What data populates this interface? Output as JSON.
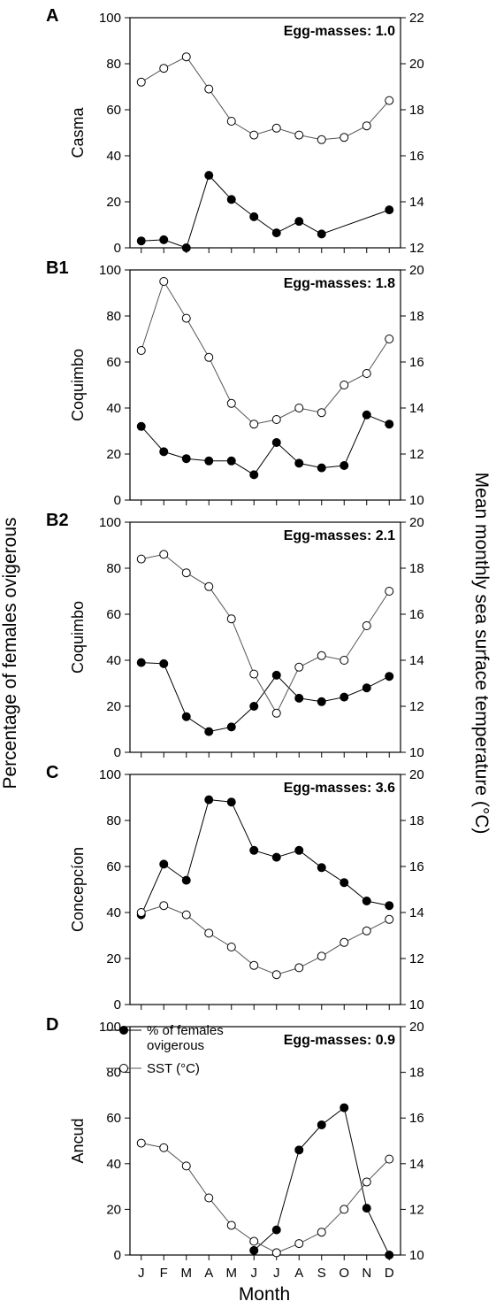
{
  "figure": {
    "y_axis_left_title": "Percentage of females ovigerous",
    "y_axis_right_title": "Mean monthly sea surface temperature (°C)",
    "x_axis_title": "Month",
    "legend": {
      "placement": "top-left of panel D",
      "series_ovigerous": "% of females ovigerous",
      "series_ovigerous_line2": "ovigerous",
      "series_ovigerous_line1": "% of females",
      "series_sst": "SST (°C)"
    }
  },
  "chart_data": [
    {
      "type": "line",
      "panel": "A",
      "site": "Casma",
      "annotation": "Egg-masses: 1.0",
      "categories": [
        "J",
        "F",
        "M",
        "A",
        "M",
        "J",
        "J",
        "A",
        "S",
        "O",
        "N",
        "D"
      ],
      "ylim": [
        0,
        100
      ],
      "yticks": [
        0,
        20,
        40,
        60,
        80,
        100
      ],
      "y2lim": [
        12,
        22
      ],
      "y2ticks": [
        12,
        14,
        16,
        18,
        20,
        22
      ],
      "series": [
        {
          "name": "% of females ovigerous",
          "axis": "left",
          "marker": "filled",
          "values": [
            3,
            3.5,
            0,
            31.5,
            21,
            13.5,
            6.5,
            11.5,
            6,
            null,
            null,
            16.5
          ]
        },
        {
          "name": "SST (°C)",
          "axis": "right",
          "marker": "open",
          "values": [
            19.2,
            19.8,
            20.3,
            18.9,
            17.5,
            16.9,
            17.2,
            16.9,
            16.7,
            16.8,
            17.3,
            18.4
          ]
        }
      ]
    },
    {
      "type": "line",
      "panel": "B1",
      "site": "Coquimbo",
      "annotation": "Egg-masses: 1.8",
      "categories": [
        "J",
        "F",
        "M",
        "A",
        "M",
        "J",
        "J",
        "A",
        "S",
        "O",
        "N",
        "D"
      ],
      "ylim": [
        0,
        100
      ],
      "yticks": [
        0,
        20,
        40,
        60,
        80,
        100
      ],
      "y2lim": [
        10,
        20
      ],
      "y2ticks": [
        10,
        12,
        14,
        16,
        18,
        20
      ],
      "series": [
        {
          "name": "% of females ovigerous",
          "axis": "left",
          "marker": "filled",
          "values": [
            32,
            21,
            18,
            17,
            17,
            11,
            25,
            16,
            14,
            15,
            37,
            33
          ]
        },
        {
          "name": "SST (°C)",
          "axis": "right",
          "marker": "open",
          "values": [
            16.5,
            19.5,
            17.9,
            16.2,
            14.2,
            13.3,
            13.5,
            14.0,
            13.8,
            15.0,
            15.5,
            17.0
          ]
        }
      ]
    },
    {
      "type": "line",
      "panel": "B2",
      "site": "Coquimbo",
      "annotation": "Egg-masses: 2.1",
      "categories": [
        "J",
        "F",
        "M",
        "A",
        "M",
        "J",
        "J",
        "A",
        "S",
        "O",
        "N",
        "D"
      ],
      "ylim": [
        0,
        100
      ],
      "yticks": [
        0,
        20,
        40,
        60,
        80,
        100
      ],
      "y2lim": [
        10,
        20
      ],
      "y2ticks": [
        10,
        12,
        14,
        16,
        18,
        20
      ],
      "series": [
        {
          "name": "% of females ovigerous",
          "axis": "left",
          "marker": "filled",
          "values": [
            39,
            38.5,
            15.5,
            9,
            11,
            20,
            33.5,
            23.5,
            22,
            24,
            28,
            33
          ]
        },
        {
          "name": "SST (°C)",
          "axis": "right",
          "marker": "open",
          "values": [
            18.4,
            18.6,
            17.8,
            17.2,
            15.8,
            13.4,
            11.7,
            13.7,
            14.2,
            14.0,
            15.5,
            17.0
          ]
        }
      ]
    },
    {
      "type": "line",
      "panel": "C",
      "site": "Concepcíon",
      "annotation": "Egg-masses: 3.6",
      "categories": [
        "J",
        "F",
        "M",
        "A",
        "M",
        "J",
        "J",
        "A",
        "S",
        "O",
        "N",
        "D"
      ],
      "ylim": [
        0,
        100
      ],
      "yticks": [
        0,
        20,
        40,
        60,
        80,
        100
      ],
      "y2lim": [
        10,
        20
      ],
      "y2ticks": [
        10,
        12,
        14,
        16,
        18,
        20
      ],
      "series": [
        {
          "name": "% of females ovigerous",
          "axis": "left",
          "marker": "filled",
          "values": [
            39,
            61,
            54,
            89,
            88,
            67,
            64,
            67,
            59.5,
            53,
            45,
            43
          ]
        },
        {
          "name": "SST (°C)",
          "axis": "right",
          "marker": "open",
          "values": [
            14.0,
            14.3,
            13.9,
            13.1,
            12.5,
            11.7,
            11.3,
            11.6,
            12.1,
            12.7,
            13.2,
            13.7
          ]
        }
      ]
    },
    {
      "type": "line",
      "panel": "D",
      "site": "Ancud",
      "annotation": "Egg-masses: 0.9",
      "categories": [
        "J",
        "F",
        "M",
        "A",
        "M",
        "J",
        "J",
        "A",
        "S",
        "O",
        "N",
        "D"
      ],
      "ylim": [
        0,
        100
      ],
      "yticks": [
        0,
        20,
        40,
        60,
        80,
        100
      ],
      "y2lim": [
        10,
        20
      ],
      "y2ticks": [
        10,
        12,
        14,
        16,
        18,
        20
      ],
      "series": [
        {
          "name": "% of females ovigerous",
          "axis": "left",
          "marker": "filled",
          "values": [
            null,
            null,
            null,
            null,
            null,
            2,
            11,
            46,
            57,
            64.5,
            20.5,
            0
          ]
        },
        {
          "name": "SST (°C)",
          "axis": "right",
          "marker": "open",
          "values": [
            14.9,
            14.7,
            13.9,
            12.5,
            11.3,
            10.6,
            10.1,
            10.5,
            11.0,
            12.0,
            13.2,
            14.2
          ]
        }
      ]
    }
  ]
}
